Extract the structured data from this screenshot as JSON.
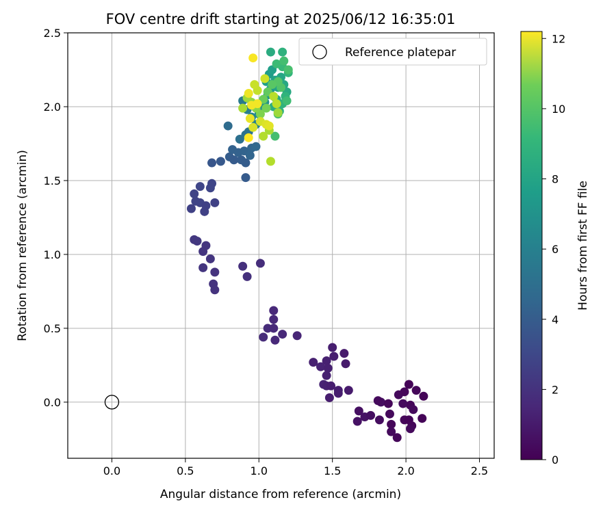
{
  "chart_data": {
    "type": "scatter",
    "title": "FOV centre drift starting at 2025/06/12 16:35:01",
    "xlabel": "Angular distance from reference (arcmin)",
    "ylabel": "Rotation from reference (arcmin)",
    "xlim": [
      -0.3,
      2.6
    ],
    "ylim": [
      -0.38,
      2.5
    ],
    "xticks": [
      "0.0",
      "0.5",
      "1.0",
      "1.5",
      "2.0",
      "2.5"
    ],
    "yticks": [
      "0.0",
      "0.5",
      "1.0",
      "1.5",
      "2.0",
      "2.5"
    ],
    "grid": true,
    "legend": {
      "position": "top-right",
      "entries": [
        "Reference platepar"
      ]
    },
    "reference_point": {
      "name": "Reference platepar",
      "x": 0.0,
      "y": 0.0
    },
    "colorbar": {
      "label": "Hours from first FF file",
      "range": [
        0,
        12.2
      ],
      "ticks": [
        "0",
        "2",
        "4",
        "6",
        "8",
        "10",
        "12"
      ],
      "colormap": "viridis"
    },
    "points": [
      {
        "x": 2.02,
        "y": 0.12,
        "t": 0.1
      },
      {
        "x": 2.07,
        "y": 0.08,
        "t": 0.2
      },
      {
        "x": 2.12,
        "y": 0.04,
        "t": 0.1
      },
      {
        "x": 1.95,
        "y": 0.05,
        "t": 0.3
      },
      {
        "x": 1.99,
        "y": 0.07,
        "t": 0.2
      },
      {
        "x": 2.11,
        "y": -0.11,
        "t": 0.1
      },
      {
        "x": 2.03,
        "y": -0.02,
        "t": 0.2
      },
      {
        "x": 1.98,
        "y": -0.01,
        "t": 0.3
      },
      {
        "x": 1.83,
        "y": 0.0,
        "t": 0.4
      },
      {
        "x": 1.81,
        "y": 0.01,
        "t": 0.3
      },
      {
        "x": 1.88,
        "y": -0.01,
        "t": 0.2
      },
      {
        "x": 1.89,
        "y": -0.08,
        "t": 0.3
      },
      {
        "x": 1.82,
        "y": -0.12,
        "t": 0.4
      },
      {
        "x": 1.99,
        "y": -0.12,
        "t": 0.2
      },
      {
        "x": 2.02,
        "y": -0.12,
        "t": 0.1
      },
      {
        "x": 2.04,
        "y": -0.16,
        "t": 0.2
      },
      {
        "x": 2.03,
        "y": -0.18,
        "t": 0.3
      },
      {
        "x": 1.9,
        "y": -0.15,
        "t": 0.2
      },
      {
        "x": 1.9,
        "y": -0.2,
        "t": 0.3
      },
      {
        "x": 1.94,
        "y": -0.24,
        "t": 0.2
      },
      {
        "x": 1.68,
        "y": -0.06,
        "t": 0.5
      },
      {
        "x": 1.72,
        "y": -0.1,
        "t": 0.6
      },
      {
        "x": 1.76,
        "y": -0.09,
        "t": 0.5
      },
      {
        "x": 1.67,
        "y": -0.13,
        "t": 0.6
      },
      {
        "x": 2.05,
        "y": -0.05,
        "t": 0.3
      },
      {
        "x": 1.5,
        "y": 0.37,
        "t": 1.0
      },
      {
        "x": 1.51,
        "y": 0.31,
        "t": 1.0
      },
      {
        "x": 1.46,
        "y": 0.28,
        "t": 1.1
      },
      {
        "x": 1.58,
        "y": 0.33,
        "t": 0.9
      },
      {
        "x": 1.59,
        "y": 0.26,
        "t": 0.9
      },
      {
        "x": 1.37,
        "y": 0.27,
        "t": 1.1
      },
      {
        "x": 1.42,
        "y": 0.24,
        "t": 1.2
      },
      {
        "x": 1.47,
        "y": 0.23,
        "t": 1.1
      },
      {
        "x": 1.46,
        "y": 0.18,
        "t": 1.1
      },
      {
        "x": 1.44,
        "y": 0.12,
        "t": 1.2
      },
      {
        "x": 1.46,
        "y": 0.11,
        "t": 1.1
      },
      {
        "x": 1.49,
        "y": 0.11,
        "t": 1.0
      },
      {
        "x": 1.54,
        "y": 0.08,
        "t": 1.0
      },
      {
        "x": 1.54,
        "y": 0.06,
        "t": 1.0
      },
      {
        "x": 1.61,
        "y": 0.08,
        "t": 0.9
      },
      {
        "x": 1.48,
        "y": 0.03,
        "t": 1.0
      },
      {
        "x": 1.1,
        "y": 0.62,
        "t": 1.4
      },
      {
        "x": 1.1,
        "y": 0.56,
        "t": 1.4
      },
      {
        "x": 1.06,
        "y": 0.5,
        "t": 1.5
      },
      {
        "x": 1.1,
        "y": 0.5,
        "t": 1.4
      },
      {
        "x": 1.03,
        "y": 0.44,
        "t": 1.5
      },
      {
        "x": 1.11,
        "y": 0.42,
        "t": 1.4
      },
      {
        "x": 1.16,
        "y": 0.46,
        "t": 1.4
      },
      {
        "x": 1.26,
        "y": 0.45,
        "t": 1.3
      },
      {
        "x": 0.89,
        "y": 0.92,
        "t": 1.7
      },
      {
        "x": 1.01,
        "y": 0.94,
        "t": 1.6
      },
      {
        "x": 0.92,
        "y": 0.85,
        "t": 1.7
      },
      {
        "x": 0.56,
        "y": 1.1,
        "t": 2.0
      },
      {
        "x": 0.58,
        "y": 1.09,
        "t": 2.0
      },
      {
        "x": 0.64,
        "y": 1.06,
        "t": 1.9
      },
      {
        "x": 0.62,
        "y": 1.02,
        "t": 1.9
      },
      {
        "x": 0.67,
        "y": 0.97,
        "t": 1.9
      },
      {
        "x": 0.62,
        "y": 0.91,
        "t": 1.9
      },
      {
        "x": 0.7,
        "y": 0.88,
        "t": 1.8
      },
      {
        "x": 0.69,
        "y": 0.8,
        "t": 1.8
      },
      {
        "x": 0.7,
        "y": 0.76,
        "t": 1.8
      },
      {
        "x": 0.56,
        "y": 1.41,
        "t": 2.5
      },
      {
        "x": 0.6,
        "y": 1.46,
        "t": 2.6
      },
      {
        "x": 0.67,
        "y": 1.45,
        "t": 2.6
      },
      {
        "x": 0.68,
        "y": 1.48,
        "t": 2.6
      },
      {
        "x": 0.57,
        "y": 1.36,
        "t": 2.5
      },
      {
        "x": 0.6,
        "y": 1.35,
        "t": 2.5
      },
      {
        "x": 0.64,
        "y": 1.33,
        "t": 2.4
      },
      {
        "x": 0.7,
        "y": 1.35,
        "t": 2.4
      },
      {
        "x": 0.54,
        "y": 1.31,
        "t": 2.4
      },
      {
        "x": 0.63,
        "y": 1.29,
        "t": 2.4
      },
      {
        "x": 0.68,
        "y": 1.62,
        "t": 3.3
      },
      {
        "x": 0.74,
        "y": 1.63,
        "t": 3.4
      },
      {
        "x": 0.8,
        "y": 1.66,
        "t": 3.6
      },
      {
        "x": 0.83,
        "y": 1.64,
        "t": 3.5
      },
      {
        "x": 0.88,
        "y": 1.64,
        "t": 3.6
      },
      {
        "x": 0.91,
        "y": 1.62,
        "t": 3.6
      },
      {
        "x": 0.91,
        "y": 1.52,
        "t": 3.5
      },
      {
        "x": 0.82,
        "y": 1.71,
        "t": 3.8
      },
      {
        "x": 0.86,
        "y": 1.69,
        "t": 3.8
      },
      {
        "x": 0.9,
        "y": 1.7,
        "t": 3.9
      },
      {
        "x": 0.94,
        "y": 1.67,
        "t": 4.0
      },
      {
        "x": 0.95,
        "y": 1.72,
        "t": 4.0
      },
      {
        "x": 0.98,
        "y": 1.73,
        "t": 4.1
      },
      {
        "x": 0.79,
        "y": 1.87,
        "t": 4.3
      },
      {
        "x": 0.87,
        "y": 1.78,
        "t": 4.5
      },
      {
        "x": 0.91,
        "y": 1.81,
        "t": 4.6
      },
      {
        "x": 0.93,
        "y": 1.83,
        "t": 4.6
      },
      {
        "x": 0.89,
        "y": 2.04,
        "t": 5.0
      },
      {
        "x": 0.92,
        "y": 1.98,
        "t": 5.2
      },
      {
        "x": 0.95,
        "y": 1.93,
        "t": 5.4
      },
      {
        "x": 0.98,
        "y": 1.88,
        "t": 5.5
      },
      {
        "x": 1.0,
        "y": 1.95,
        "t": 5.8
      },
      {
        "x": 1.02,
        "y": 1.99,
        "t": 6.0
      },
      {
        "x": 1.04,
        "y": 2.03,
        "t": 6.2
      },
      {
        "x": 1.06,
        "y": 2.08,
        "t": 6.4
      },
      {
        "x": 1.08,
        "y": 2.12,
        "t": 6.6
      },
      {
        "x": 1.05,
        "y": 2.17,
        "t": 6.8
      },
      {
        "x": 1.07,
        "y": 2.22,
        "t": 6.7
      },
      {
        "x": 1.09,
        "y": 2.25,
        "t": 6.9
      },
      {
        "x": 1.11,
        "y": 2.18,
        "t": 7.0
      },
      {
        "x": 1.13,
        "y": 2.13,
        "t": 7.1
      },
      {
        "x": 1.15,
        "y": 2.2,
        "t": 7.2
      },
      {
        "x": 1.17,
        "y": 2.15,
        "t": 7.3
      },
      {
        "x": 1.19,
        "y": 2.1,
        "t": 7.4
      },
      {
        "x": 1.12,
        "y": 2.05,
        "t": 7.5
      },
      {
        "x": 1.1,
        "y": 2.0,
        "t": 7.6
      },
      {
        "x": 1.14,
        "y": 1.97,
        "t": 7.7
      },
      {
        "x": 1.16,
        "y": 2.02,
        "t": 7.8
      },
      {
        "x": 1.18,
        "y": 2.07,
        "t": 7.9
      },
      {
        "x": 1.2,
        "y": 2.23,
        "t": 8.0
      },
      {
        "x": 1.16,
        "y": 2.27,
        "t": 8.2
      },
      {
        "x": 1.12,
        "y": 2.29,
        "t": 8.3
      },
      {
        "x": 1.08,
        "y": 2.37,
        "t": 7.5
      },
      {
        "x": 1.16,
        "y": 2.37,
        "t": 7.8
      },
      {
        "x": 1.17,
        "y": 2.31,
        "t": 8.5
      },
      {
        "x": 1.2,
        "y": 2.25,
        "t": 8.6
      },
      {
        "x": 1.19,
        "y": 2.04,
        "t": 8.4
      },
      {
        "x": 1.13,
        "y": 1.95,
        "t": 8.7
      },
      {
        "x": 1.11,
        "y": 1.8,
        "t": 8.5
      },
      {
        "x": 1.15,
        "y": 2.13,
        "t": 8.8
      },
      {
        "x": 1.13,
        "y": 2.17,
        "t": 8.9
      },
      {
        "x": 1.09,
        "y": 2.15,
        "t": 9.0
      },
      {
        "x": 1.06,
        "y": 2.1,
        "t": 9.2
      },
      {
        "x": 1.03,
        "y": 2.05,
        "t": 9.4
      },
      {
        "x": 1.05,
        "y": 1.99,
        "t": 9.6
      },
      {
        "x": 1.01,
        "y": 1.95,
        "t": 9.8
      },
      {
        "x": 0.98,
        "y": 1.99,
        "t": 10.0
      },
      {
        "x": 0.95,
        "y": 2.03,
        "t": 10.2
      },
      {
        "x": 0.92,
        "y": 2.06,
        "t": 10.4
      },
      {
        "x": 0.89,
        "y": 1.99,
        "t": 10.6
      },
      {
        "x": 1.08,
        "y": 1.63,
        "t": 10.8
      },
      {
        "x": 1.13,
        "y": 1.96,
        "t": 10.4
      },
      {
        "x": 1.07,
        "y": 1.84,
        "t": 10.6
      },
      {
        "x": 1.03,
        "y": 1.8,
        "t": 10.8
      },
      {
        "x": 1.1,
        "y": 2.07,
        "t": 10.9
      },
      {
        "x": 1.12,
        "y": 2.02,
        "t": 11.0
      },
      {
        "x": 0.99,
        "y": 2.11,
        "t": 11.1
      },
      {
        "x": 0.97,
        "y": 2.15,
        "t": 11.2
      },
      {
        "x": 1.04,
        "y": 2.19,
        "t": 11.3
      },
      {
        "x": 1.01,
        "y": 1.9,
        "t": 11.4
      },
      {
        "x": 0.96,
        "y": 1.86,
        "t": 11.5
      },
      {
        "x": 1.05,
        "y": 1.88,
        "t": 11.6
      },
      {
        "x": 1.07,
        "y": 1.87,
        "t": 11.7
      },
      {
        "x": 0.94,
        "y": 1.92,
        "t": 11.8
      },
      {
        "x": 0.93,
        "y": 2.09,
        "t": 11.9
      },
      {
        "x": 0.95,
        "y": 2.01,
        "t": 12.0
      },
      {
        "x": 0.99,
        "y": 2.02,
        "t": 12.0
      },
      {
        "x": 0.96,
        "y": 2.33,
        "t": 12.1
      },
      {
        "x": 0.93,
        "y": 1.79,
        "t": 12.2
      }
    ]
  }
}
